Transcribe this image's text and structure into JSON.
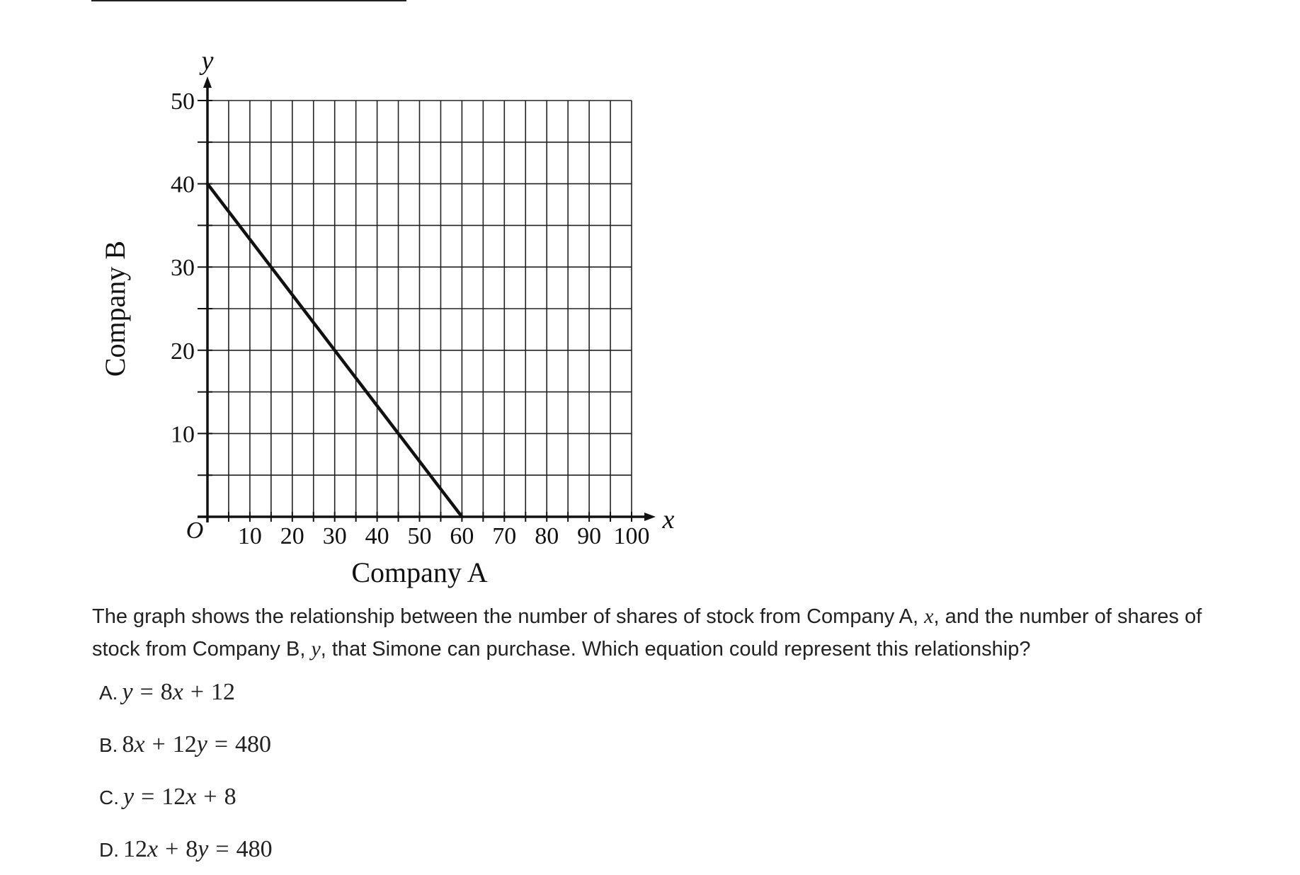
{
  "chart_data": {
    "type": "line",
    "x": [
      0,
      60
    ],
    "y": [
      40,
      0
    ],
    "xlabel": "Company A",
    "ylabel": "Company B",
    "x_axis_letter": "x",
    "y_axis_letter": "y",
    "origin_label": "O",
    "xlim": [
      0,
      100
    ],
    "ylim": [
      0,
      50
    ],
    "xticks": [
      "10",
      "20",
      "30",
      "40",
      "50",
      "60",
      "70",
      "80",
      "90",
      "100"
    ],
    "yticks": [
      "10",
      "20",
      "30",
      "40",
      "50"
    ],
    "x_grid_step": 5,
    "y_grid_step": 5,
    "grid": true
  },
  "question": {
    "part1": "The graph shows the relationship between the number of shares of stock from Company A, ",
    "var_x": "x",
    "part2": ", and the number of shares of stock from Company B, ",
    "var_y": "y",
    "part3": ", that Simone can purchase. Which equation could represent this relationship?"
  },
  "choices": [
    {
      "letter": "A.",
      "expr": "y = 8x + 12"
    },
    {
      "letter": "B.",
      "expr": "8x + 12y = 480"
    },
    {
      "letter": "C.",
      "expr": "y = 12x + 8"
    },
    {
      "letter": "D.",
      "expr": "12x + 8y = 480"
    }
  ]
}
